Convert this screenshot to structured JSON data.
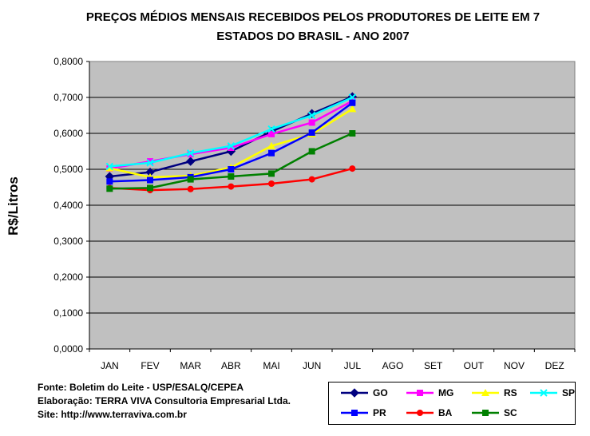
{
  "chart_data": {
    "type": "line",
    "title_lines": [
      "PREÇOS MÉDIOS MENSAIS RECEBIDOS PELOS PRODUTORES DE LEITE EM 7",
      "ESTADOS DO BRASIL - ANO 2007"
    ],
    "ylabel": "R$/Litros",
    "xlabel": "",
    "ylim": [
      0,
      0.8
    ],
    "y_ticks": [
      "0,0000",
      "0,1000",
      "0,2000",
      "0,3000",
      "0,4000",
      "0,5000",
      "0,6000",
      "0,7000",
      "0,8000"
    ],
    "categories": [
      "JAN",
      "FEV",
      "MAR",
      "ABR",
      "MAI",
      "JUN",
      "JUL",
      "AGO",
      "SET",
      "OUT",
      "NOV",
      "DEZ"
    ],
    "plot_background": "#c0c0c0",
    "grid": "horizontal",
    "legend_position": "bottom-right",
    "series": [
      {
        "name": "GO",
        "color": "#000080",
        "marker": "diamond",
        "values": [
          0.48,
          0.492,
          0.522,
          0.55,
          0.605,
          0.655,
          0.702,
          null,
          null,
          null,
          null,
          null
        ]
      },
      {
        "name": "MG",
        "color": "#ff00ff",
        "marker": "square",
        "values": [
          0.502,
          0.522,
          0.542,
          0.56,
          0.598,
          0.63,
          0.69,
          null,
          null,
          null,
          null,
          null
        ]
      },
      {
        "name": "RS",
        "color": "#ffff00",
        "marker": "triangle",
        "values": [
          0.503,
          0.478,
          0.482,
          0.505,
          0.565,
          0.598,
          0.668,
          null,
          null,
          null,
          null,
          null
        ]
      },
      {
        "name": "SP",
        "color": "#00ffff",
        "marker": "x",
        "values": [
          0.508,
          0.518,
          0.545,
          0.565,
          0.612,
          0.65,
          0.7,
          null,
          null,
          null,
          null,
          null
        ]
      },
      {
        "name": "PR",
        "color": "#0000ff",
        "marker": "square",
        "values": [
          0.466,
          0.47,
          0.478,
          0.5,
          0.545,
          0.602,
          0.685,
          null,
          null,
          null,
          null,
          null
        ]
      },
      {
        "name": "BA",
        "color": "#ff0000",
        "marker": "circle",
        "values": [
          0.448,
          0.442,
          0.445,
          0.452,
          0.46,
          0.472,
          0.502,
          null,
          null,
          null,
          null,
          null
        ]
      },
      {
        "name": "SC",
        "color": "#008000",
        "marker": "square",
        "values": [
          0.446,
          0.448,
          0.472,
          0.48,
          0.488,
          0.55,
          0.6,
          null,
          null,
          null,
          null,
          null
        ]
      }
    ]
  },
  "footer": {
    "source": "Fonte: Boletim do Leite - USP/ESALQ/CEPEA",
    "elaboration": "Elaboração: TERRA VIVA Consultoria Empresarial Ltda.",
    "site": "Site: http://www.terraviva.com.br"
  }
}
